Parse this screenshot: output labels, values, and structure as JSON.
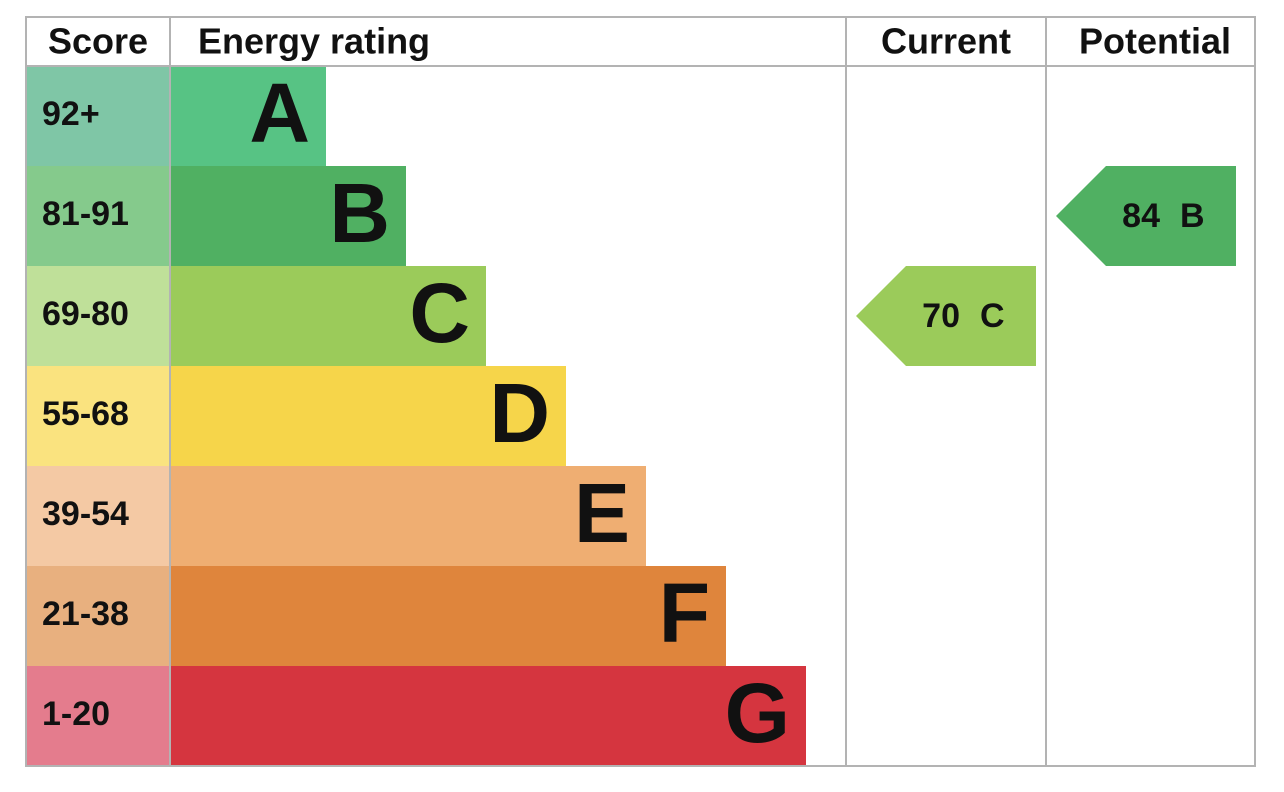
{
  "header": {
    "score": "Score",
    "energy_rating": "Energy rating",
    "current": "Current",
    "potential": "Potential"
  },
  "bands": [
    {
      "score": "92+",
      "letter": "A",
      "score_color": "#7fc6a6",
      "color": "#57c384"
    },
    {
      "score": "81-91",
      "letter": "B",
      "score_color": "#85ca8c",
      "color": "#50b062"
    },
    {
      "score": "69-80",
      "letter": "C",
      "score_color": "#bfe099",
      "color": "#9bcb5a"
    },
    {
      "score": "55-68",
      "letter": "D",
      "score_color": "#fae37f",
      "color": "#f6d54a"
    },
    {
      "score": "39-54",
      "letter": "E",
      "score_color": "#f4c9a4",
      "color": "#efae72"
    },
    {
      "score": "21-38",
      "letter": "F",
      "score_color": "#e8b07f",
      "color": "#df853c"
    },
    {
      "score": "1-20",
      "letter": "G",
      "score_color": "#e47c8d",
      "color": "#d5353f"
    }
  ],
  "current": {
    "value": 70,
    "letter": "C"
  },
  "potential": {
    "value": 84,
    "letter": "B"
  }
}
